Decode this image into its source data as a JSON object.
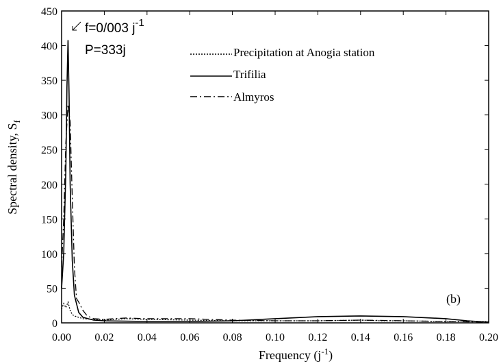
{
  "chart_data": {
    "type": "line",
    "title": "",
    "xlabel": "Frequency (j",
    "xlabel_sup": "-1",
    "xlabel_close": ")",
    "ylabel": "Spectral density, S",
    "ylabel_sub": "f",
    "xlim": [
      0,
      0.2
    ],
    "ylim": [
      0,
      450
    ],
    "x_ticks": [
      "0.00",
      "0.02",
      "0.04",
      "0.06",
      "0.08",
      "0.10",
      "0.12",
      "0.14",
      "0.16",
      "0.18",
      "0.20"
    ],
    "y_ticks": [
      "0",
      "50",
      "100",
      "150",
      "200",
      "250",
      "300",
      "350",
      "400",
      "450"
    ],
    "grid": false,
    "legend_position": "top-center",
    "panel_label": "(b)",
    "annotation": {
      "line1": "f=0/003 j",
      "line1_sup": "-1",
      "line2": "P=333j",
      "x": 0.003,
      "y": 410
    },
    "series": [
      {
        "name": "Precipitation at Anogia station",
        "style": "dotted",
        "x": [
          0,
          0.001,
          0.002,
          0.003,
          0.004,
          0.005,
          0.006,
          0.008,
          0.01,
          0.015,
          0.02,
          0.03,
          0.04,
          0.06,
          0.08,
          0.1,
          0.12,
          0.14,
          0.15,
          0.16,
          0.18,
          0.2
        ],
        "y": [
          20,
          28,
          22,
          30,
          18,
          12,
          10,
          8,
          6,
          5,
          4,
          6,
          5,
          4,
          3,
          3,
          3,
          4,
          3,
          3,
          2,
          2
        ]
      },
      {
        "name": "Trifilia",
        "style": "solid",
        "x": [
          0,
          0.001,
          0.002,
          0.0025,
          0.003,
          0.0035,
          0.004,
          0.005,
          0.006,
          0.008,
          0.01,
          0.015,
          0.02,
          0.04,
          0.06,
          0.08,
          0.1,
          0.12,
          0.14,
          0.16,
          0.18,
          0.19,
          0.2
        ],
        "y": [
          50,
          100,
          220,
          340,
          408,
          330,
          200,
          90,
          40,
          15,
          8,
          4,
          3,
          2,
          2,
          3,
          6,
          9,
          10,
          9,
          6,
          3,
          1
        ]
      },
      {
        "name": "Almyros",
        "style": "dashdot",
        "x": [
          0,
          0.001,
          0.002,
          0.003,
          0.004,
          0.005,
          0.006,
          0.007,
          0.008,
          0.01,
          0.012,
          0.015,
          0.02,
          0.03,
          0.04,
          0.06,
          0.08,
          0.1,
          0.12,
          0.14,
          0.16,
          0.18,
          0.2
        ],
        "y": [
          80,
          150,
          260,
          315,
          290,
          180,
          80,
          35,
          30,
          18,
          10,
          6,
          5,
          7,
          6,
          6,
          4,
          3,
          3,
          4,
          3,
          2,
          1
        ]
      }
    ]
  }
}
